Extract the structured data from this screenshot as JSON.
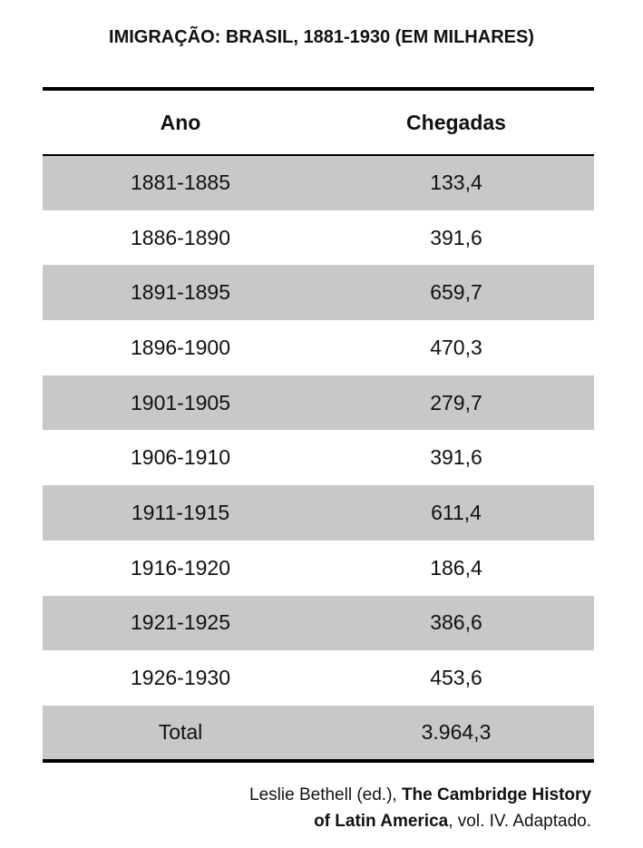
{
  "title": "IMIGRAÇÃO: BRASIL, 1881-1930 (EM MILHARES)",
  "table": {
    "header": [
      "Ano",
      "Chegadas"
    ],
    "rows": [
      [
        "1881-1885",
        "133,4"
      ],
      [
        "1886-1890",
        "391,6"
      ],
      [
        "1891-1895",
        "659,7"
      ],
      [
        "1896-1900",
        "470,3"
      ],
      [
        "1901-1905",
        "279,7"
      ],
      [
        "1906-1910",
        "391,6"
      ],
      [
        "1911-1915",
        "611,4"
      ],
      [
        "1916-1920",
        "186,4"
      ],
      [
        "1921-1925",
        "386,6"
      ],
      [
        "1926-1930",
        "453,6"
      ]
    ],
    "total": [
      "Total",
      "3.964,3"
    ]
  },
  "source": {
    "lines": [
      [
        "Leslie Bethell (ed.), ",
        "The Cambridge History"
      ],
      [
        "of Latin America",
        ", vol. IV. Adaptado."
      ]
    ]
  }
}
